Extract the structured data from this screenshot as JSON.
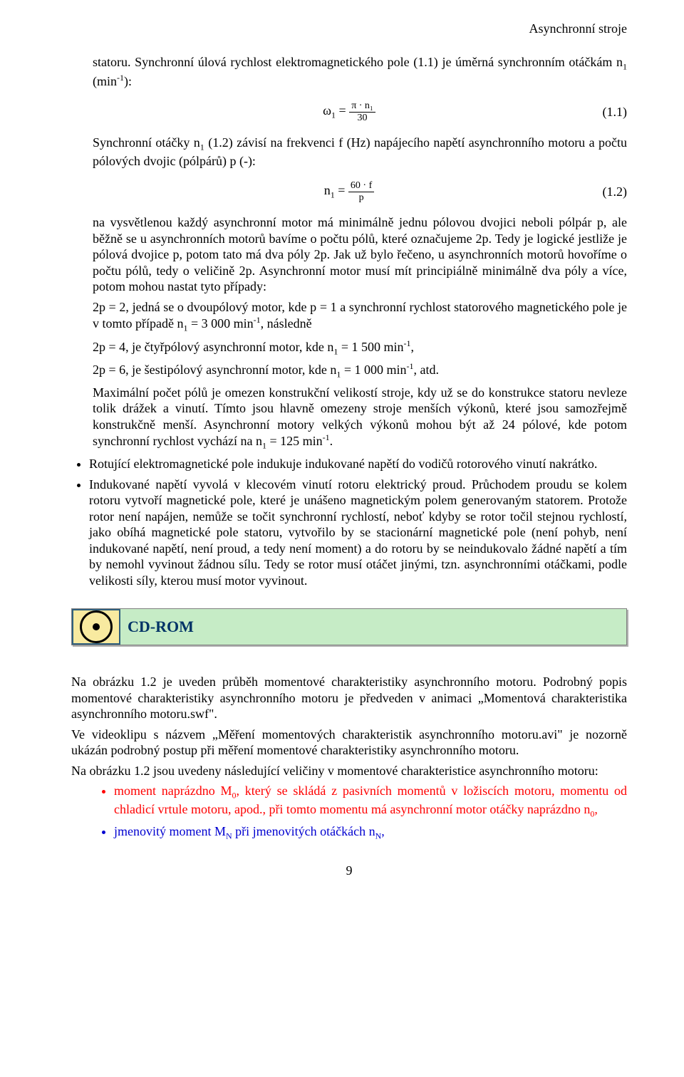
{
  "header": {
    "running_title": "Asynchronní stroje"
  },
  "intro": {
    "para1a": "statoru. Synchronní úlová rychlost elektromagnetického pole (1.1) je úměrná synchronním otáčkám n",
    "para1b": " (min",
    "para1c": "):"
  },
  "eq1": {
    "lhs_var": "ω",
    "lhs_sub": "1",
    "eq": " = ",
    "num": "π · n₁",
    "den": "30",
    "label": "(1.1)"
  },
  "para2a": "Synchronní otáčky n",
  "para2b": " (1.2) závisí na frekvenci f (Hz) napájecího napětí asynchronního motoru a počtu pólových dvojic (pólpárů) p (-):",
  "eq2": {
    "lhs_var": "n",
    "lhs_sub": "1",
    "eq": " = ",
    "num": "60 · f",
    "den": "p",
    "label": "(1.2)"
  },
  "bigpara": "na vysvětlenou každý asynchronní motor má minimálně jednu pólovou dvojici neboli pólpár p, ale běžně se u asynchronních motorů bavíme o počtu pólů, které označujeme 2p. Tedy je logické jestliže je pólová dvojice p, potom tato má dva póly 2p. Jak už bylo řečeno, u asynchronních motorů hovoříme o počtu pólů, tedy o veličině 2p. Asynchronní motor musí mít principiálně minimálně dva póly a více, potom mohou nastat tyto případy:",
  "case1a": "2p = 2, jedná se o dvoupólový motor, kde p = 1 a synchronní rychlost statorového magnetického pole je v tomto případě n",
  "case1b": " = 3 000 min",
  "case1c": ", následně",
  "case2a": "2p = 4, je čtyřpólový asynchronní motor, kde n",
  "case2b": " = 1 500 min",
  "case2c": ",",
  "case3a": "2p = 6, je šestipólový asynchronní motor, kde n",
  "case3b": " = 1 000 min",
  "case3c": ", atd.",
  "maxpara_a": "Maximální počet pólů je omezen konstrukční velikostí stroje, kdy už se do konstrukce statoru nevleze tolik drážek a vinutí. Tímto jsou hlavně omezeny stroje menších výkonů, které jsou samozřejmě konstrukčně menší. Asynchronní motory velkých výkonů mohou být až 24 pólové, kde potom synchronní rychlost vychází na n",
  "maxpara_b": " = 125 min",
  "maxpara_c": ".",
  "bullets": {
    "b1": "Rotující elektromagnetické pole indukuje indukované napětí do vodičů rotorového vinutí nakrátko.",
    "b2": "Indukované napětí vyvolá v klecovém vinutí rotoru elektrický proud. Průchodem proudu se kolem rotoru vytvoří magnetické pole, které je unášeno magnetickým polem generovaným statorem. Protože rotor není napájen, nemůže se točit synchronní rychlostí, neboť kdyby se rotor točil stejnou rychlostí, jako obíhá magnetické pole statoru, vytvořilo by se stacionární magnetické pole (není pohyb, není indukované napětí, není proud, a tedy není moment) a do rotoru by se neindukovalo žádné napětí a tím by nemohl vyvinout žádnou sílu. Tedy se rotor musí otáčet jinými, tzn. asynchronními otáčkami, podle velikosti síly, kterou musí motor vyvinout."
  },
  "cdrom": {
    "label": "CD-ROM"
  },
  "after": {
    "p1": "Na obrázku 1.2 je uveden průběh momentové charakteristiky asynchronního motoru. Podrobný popis momentové charakteristiky asynchronního motoru je předveden v animaci „Momentová charakteristika asynchronního motoru.swf\".",
    "p2": "Ve videoklipu s názvem „Měření momentových charakteristik asynchronního motoru.avi\" je nozorně ukázán podrobný postup při měření momentové charakteristiky asynchronního motoru.",
    "p3": "Na obrázku 1.2 jsou uvedeny následující veličiny v momentové charakteristice asynchronního motoru:"
  },
  "colored": {
    "item1a": "moment naprázdno M",
    "item1b": ", který se skládá z pasivních momentů v ložiscích motoru, momentu od chladicí vrtule motoru, apod., při tomto momentu má asynchronní motor otáčky naprázdno n",
    "item1c": ",",
    "item2a": "jmenovitý moment M",
    "item2b": " při jmenovitých otáčkách n",
    "item2c": ","
  },
  "colors": {
    "red": "#ff0000",
    "blue": "#0000d0",
    "cdrom_icon_bg": "#f8eaa0",
    "cdrom_icon_border": "#30607e",
    "cdrom_label_bg": "#c6ecc6",
    "cdrom_text": "#003366"
  },
  "pagenum": "9"
}
